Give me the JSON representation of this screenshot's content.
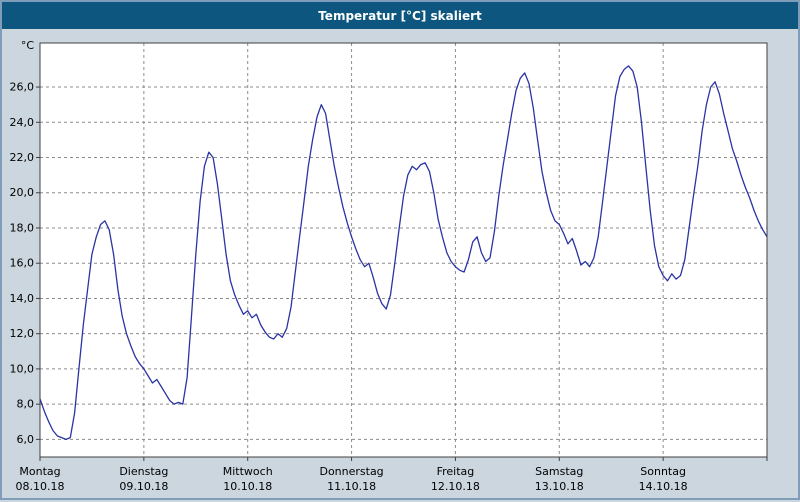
{
  "title_bar": {
    "title": "Temperatur [°C] skaliert"
  },
  "colors": {
    "title_bg": "#0d567f",
    "title_fg": "#ffffff",
    "frame_bg": "#ccd6df",
    "plot_bg": "#ffffff",
    "grid": "#8c8c8c",
    "plot_border": "#404040",
    "tick": "#404040",
    "label": "#000000",
    "line": "#2a34a4"
  },
  "chart_data": {
    "type": "line",
    "title": "Temperatur [°C] skaliert",
    "ylabel": "°C",
    "xlabel": "",
    "grid": true,
    "legend": "none",
    "ylim": [
      5.0,
      28.5
    ],
    "x_unit": "hours",
    "x_range": [
      0,
      168
    ],
    "y_ticks": [
      6,
      8,
      10,
      12,
      14,
      16,
      18,
      20,
      22,
      24,
      26
    ],
    "y_tick_labels": [
      "6,0",
      "8,0",
      "10,0",
      "12,0",
      "14,0",
      "16,0",
      "18,0",
      "20,0",
      "22,0",
      "24,0",
      "26,0"
    ],
    "x_day_tick_hours": [
      0,
      24,
      48,
      72,
      96,
      120,
      144,
      168
    ],
    "x_grid_hours": [
      24,
      48,
      72,
      96,
      120,
      144
    ],
    "day_labels": [
      {
        "name": "Montag",
        "date": "08.10.18",
        "hour": 0
      },
      {
        "name": "Dienstag",
        "date": "09.10.18",
        "hour": 24
      },
      {
        "name": "Mittwoch",
        "date": "10.10.18",
        "hour": 48
      },
      {
        "name": "Donnerstag",
        "date": "11.10.18",
        "hour": 72
      },
      {
        "name": "Freitag",
        "date": "12.10.18",
        "hour": 96
      },
      {
        "name": "Samstag",
        "date": "13.10.18",
        "hour": 120
      },
      {
        "name": "Sonntag",
        "date": "14.10.18",
        "hour": 144
      }
    ],
    "series": [
      {
        "name": "Temperatur [°C]",
        "color": "#2a34a4",
        "points": [
          [
            0,
            8.3
          ],
          [
            1,
            7.6
          ],
          [
            2,
            7.0
          ],
          [
            3,
            6.5
          ],
          [
            4,
            6.2
          ],
          [
            5,
            6.1
          ],
          [
            6,
            6.0
          ],
          [
            7,
            6.1
          ],
          [
            8,
            7.5
          ],
          [
            9,
            10.0
          ],
          [
            10,
            12.5
          ],
          [
            11,
            14.5
          ],
          [
            12,
            16.5
          ],
          [
            13,
            17.5
          ],
          [
            14,
            18.2
          ],
          [
            15,
            18.4
          ],
          [
            16,
            17.9
          ],
          [
            17,
            16.5
          ],
          [
            18,
            14.5
          ],
          [
            19,
            13.0
          ],
          [
            20,
            12.0
          ],
          [
            21,
            11.3
          ],
          [
            22,
            10.7
          ],
          [
            23,
            10.3
          ],
          [
            24,
            10.0
          ],
          [
            25,
            9.6
          ],
          [
            26,
            9.2
          ],
          [
            27,
            9.4
          ],
          [
            28,
            9.0
          ],
          [
            29,
            8.6
          ],
          [
            30,
            8.2
          ],
          [
            31,
            8.0
          ],
          [
            32,
            8.1
          ],
          [
            33,
            8.0
          ],
          [
            34,
            9.5
          ],
          [
            35,
            13.0
          ],
          [
            36,
            16.5
          ],
          [
            37,
            19.5
          ],
          [
            38,
            21.5
          ],
          [
            39,
            22.3
          ],
          [
            40,
            22.0
          ],
          [
            41,
            20.5
          ],
          [
            42,
            18.5
          ],
          [
            43,
            16.5
          ],
          [
            44,
            15.0
          ],
          [
            45,
            14.2
          ],
          [
            46,
            13.6
          ],
          [
            47,
            13.1
          ],
          [
            48,
            13.3
          ],
          [
            49,
            12.9
          ],
          [
            50,
            13.1
          ],
          [
            51,
            12.5
          ],
          [
            52,
            12.1
          ],
          [
            53,
            11.8
          ],
          [
            54,
            11.7
          ],
          [
            55,
            12.0
          ],
          [
            56,
            11.8
          ],
          [
            57,
            12.3
          ],
          [
            58,
            13.5
          ],
          [
            59,
            15.5
          ],
          [
            60,
            17.5
          ],
          [
            61,
            19.5
          ],
          [
            62,
            21.5
          ],
          [
            63,
            23.0
          ],
          [
            64,
            24.3
          ],
          [
            65,
            25.0
          ],
          [
            66,
            24.5
          ],
          [
            67,
            23.0
          ],
          [
            68,
            21.5
          ],
          [
            69,
            20.3
          ],
          [
            70,
            19.2
          ],
          [
            71,
            18.3
          ],
          [
            72,
            17.5
          ],
          [
            73,
            16.8
          ],
          [
            74,
            16.2
          ],
          [
            75,
            15.8
          ],
          [
            76,
            16.0
          ],
          [
            77,
            15.2
          ],
          [
            78,
            14.3
          ],
          [
            79,
            13.7
          ],
          [
            80,
            13.4
          ],
          [
            81,
            14.2
          ],
          [
            82,
            16.0
          ],
          [
            83,
            18.0
          ],
          [
            84,
            19.8
          ],
          [
            85,
            21.0
          ],
          [
            86,
            21.5
          ],
          [
            87,
            21.3
          ],
          [
            88,
            21.6
          ],
          [
            89,
            21.7
          ],
          [
            90,
            21.2
          ],
          [
            91,
            20.0
          ],
          [
            92,
            18.5
          ],
          [
            93,
            17.5
          ],
          [
            94,
            16.6
          ],
          [
            95,
            16.1
          ],
          [
            96,
            15.8
          ],
          [
            97,
            15.6
          ],
          [
            98,
            15.5
          ],
          [
            99,
            16.2
          ],
          [
            100,
            17.2
          ],
          [
            101,
            17.5
          ],
          [
            102,
            16.6
          ],
          [
            103,
            16.1
          ],
          [
            104,
            16.3
          ],
          [
            105,
            17.8
          ],
          [
            106,
            19.8
          ],
          [
            107,
            21.5
          ],
          [
            108,
            23.0
          ],
          [
            109,
            24.5
          ],
          [
            110,
            25.8
          ],
          [
            111,
            26.5
          ],
          [
            112,
            26.8
          ],
          [
            113,
            26.2
          ],
          [
            114,
            24.8
          ],
          [
            115,
            23.0
          ],
          [
            116,
            21.2
          ],
          [
            117,
            20.0
          ],
          [
            118,
            19.0
          ],
          [
            119,
            18.4
          ],
          [
            120,
            18.2
          ],
          [
            121,
            17.7
          ],
          [
            122,
            17.1
          ],
          [
            123,
            17.4
          ],
          [
            124,
            16.7
          ],
          [
            125,
            15.9
          ],
          [
            126,
            16.1
          ],
          [
            127,
            15.8
          ],
          [
            128,
            16.3
          ],
          [
            129,
            17.5
          ],
          [
            130,
            19.5
          ],
          [
            131,
            21.5
          ],
          [
            132,
            23.5
          ],
          [
            133,
            25.5
          ],
          [
            134,
            26.6
          ],
          [
            135,
            27.0
          ],
          [
            136,
            27.2
          ],
          [
            137,
            26.9
          ],
          [
            138,
            26.0
          ],
          [
            139,
            24.0
          ],
          [
            140,
            21.5
          ],
          [
            141,
            19.0
          ],
          [
            142,
            17.0
          ],
          [
            143,
            15.8
          ],
          [
            144,
            15.3
          ],
          [
            145,
            15.0
          ],
          [
            146,
            15.4
          ],
          [
            147,
            15.1
          ],
          [
            148,
            15.3
          ],
          [
            149,
            16.2
          ],
          [
            150,
            18.0
          ],
          [
            151,
            19.8
          ],
          [
            152,
            21.5
          ],
          [
            153,
            23.5
          ],
          [
            154,
            25.0
          ],
          [
            155,
            26.0
          ],
          [
            156,
            26.3
          ],
          [
            157,
            25.6
          ],
          [
            158,
            24.5
          ],
          [
            159,
            23.5
          ],
          [
            160,
            22.5
          ],
          [
            161,
            21.8
          ],
          [
            162,
            21.0
          ],
          [
            163,
            20.3
          ],
          [
            164,
            19.7
          ],
          [
            165,
            19.0
          ],
          [
            166,
            18.4
          ],
          [
            167,
            17.9
          ],
          [
            168,
            17.5
          ]
        ]
      }
    ]
  }
}
